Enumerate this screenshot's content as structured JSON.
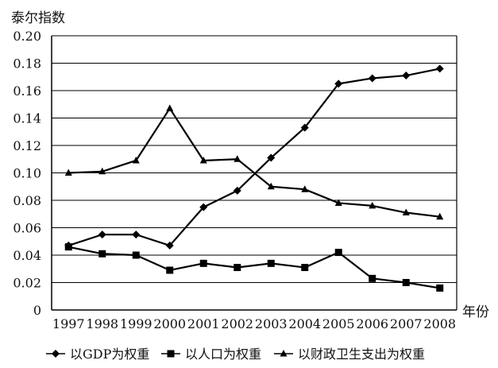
{
  "chart_data": {
    "type": "line",
    "ylabel": "泰尔指数",
    "xlabel": "年份",
    "categories": [
      "1997",
      "1998",
      "1999",
      "2000",
      "2001",
      "2002",
      "2003",
      "2004",
      "2005",
      "2006",
      "2007",
      "2008"
    ],
    "ylim": [
      0,
      0.2
    ],
    "y_ticks": [
      "0",
      "0.02",
      "0.04",
      "0.06",
      "0.08",
      "0.10",
      "0.12",
      "0.14",
      "0.16",
      "0.18",
      "0.20"
    ],
    "grid": "horizontal",
    "legend_position": "bottom",
    "series": [
      {
        "name": "以GDP为权重",
        "marker": "diamond",
        "values": [
          0.047,
          0.055,
          0.055,
          0.047,
          0.075,
          0.087,
          0.111,
          0.133,
          0.165,
          0.169,
          0.171,
          0.176
        ]
      },
      {
        "name": "以人口为权重",
        "marker": "square",
        "values": [
          0.046,
          0.041,
          0.04,
          0.029,
          0.034,
          0.031,
          0.034,
          0.031,
          0.042,
          0.023,
          0.02,
          0.016
        ]
      },
      {
        "name": "以财政卫生支出为权重",
        "marker": "triangle",
        "values": [
          0.1,
          0.101,
          0.109,
          0.147,
          0.109,
          0.11,
          0.09,
          0.088,
          0.078,
          0.076,
          0.071,
          0.068
        ]
      }
    ]
  }
}
